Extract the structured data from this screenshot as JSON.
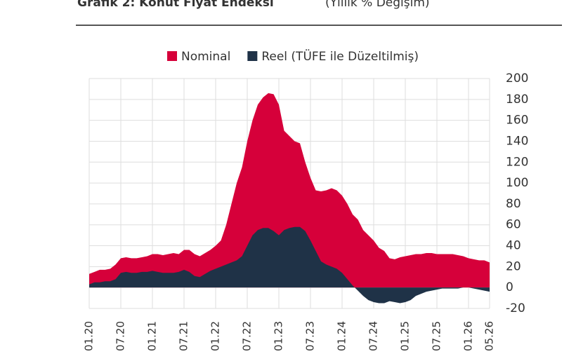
{
  "chart_data": {
    "type": "area",
    "title": "Grafik 2: Konut Fiyat Endeksi",
    "subtitle": "(Yıllık % Değişim)",
    "categories": [
      "01.20",
      null,
      null,
      null,
      null,
      null,
      "07.20",
      null,
      null,
      null,
      null,
      null,
      "01.21",
      null,
      null,
      null,
      null,
      null,
      "07.21",
      null,
      null,
      null,
      null,
      null,
      "01.22",
      null,
      null,
      null,
      null,
      null,
      "07.22",
      null,
      null,
      null,
      null,
      null,
      "01.23",
      null,
      null,
      null,
      null,
      null,
      "07.23",
      null,
      null,
      null,
      null,
      null,
      "01.24",
      null,
      null,
      null,
      null,
      null,
      "07.24",
      null,
      null,
      null,
      null,
      null,
      "01.25",
      null,
      null,
      null,
      null,
      null,
      "07.25",
      null,
      null,
      null,
      null,
      null,
      "01.26",
      null,
      null,
      null,
      "05.26"
    ],
    "series": [
      {
        "name": "Nominal",
        "color": "#d6003a",
        "values": [
          13,
          15,
          17,
          17,
          18,
          22,
          28,
          29,
          28,
          28,
          29,
          30,
          32,
          32,
          31,
          32,
          33,
          32,
          36,
          36,
          32,
          30,
          33,
          36,
          40,
          45,
          60,
          80,
          100,
          115,
          140,
          160,
          175,
          182,
          186,
          185,
          175,
          150,
          145,
          140,
          138,
          120,
          105,
          93,
          92,
          93,
          95,
          93,
          88,
          80,
          70,
          65,
          55,
          50,
          45,
          38,
          35,
          28,
          27,
          29,
          30,
          31,
          32,
          32,
          33,
          33,
          32,
          32,
          32,
          32,
          31,
          30,
          28,
          27,
          26,
          26,
          24
        ]
      },
      {
        "name": "Reel (TÜFE ile Düzeltilmiş)",
        "color": "#1f3247",
        "values": [
          3,
          5,
          5,
          6,
          6,
          8,
          14,
          15,
          14,
          14,
          15,
          15,
          16,
          15,
          14,
          14,
          14,
          15,
          17,
          15,
          11,
          10,
          13,
          16,
          18,
          20,
          22,
          24,
          26,
          30,
          40,
          50,
          55,
          57,
          57,
          54,
          50,
          55,
          57,
          58,
          58,
          54,
          45,
          35,
          25,
          22,
          20,
          18,
          14,
          8,
          2,
          -3,
          -8,
          -12,
          -14,
          -15,
          -15,
          -13,
          -14,
          -15,
          -14,
          -12,
          -8,
          -6,
          -4,
          -3,
          -2,
          -1,
          -1,
          -1,
          -1,
          0,
          0,
          -1,
          -2,
          -3,
          -4
        ]
      }
    ],
    "ylim": [
      -20,
      200
    ],
    "yticks": [
      -20,
      0,
      20,
      40,
      60,
      80,
      100,
      120,
      140,
      160,
      180,
      200
    ],
    "grid": true
  }
}
